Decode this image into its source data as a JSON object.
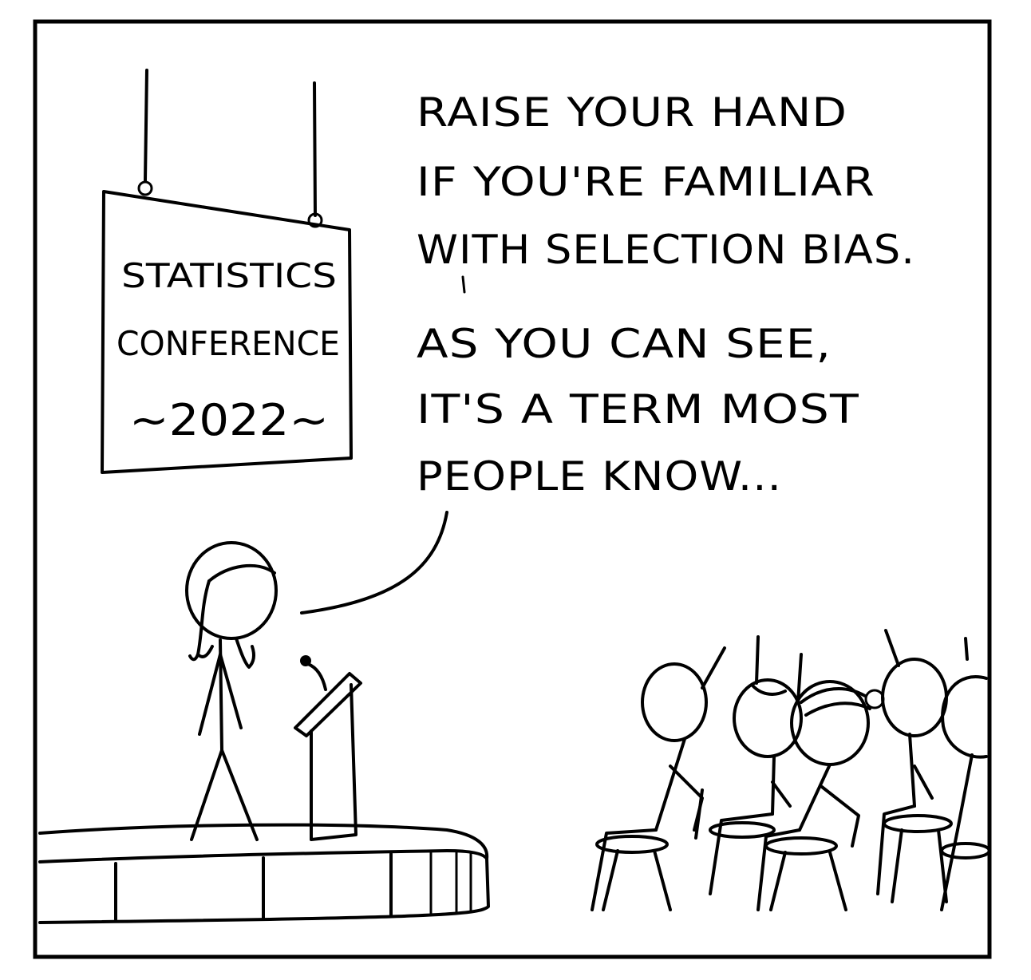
{
  "sign": {
    "line1": "STATISTICS",
    "line2": "CONFERENCE",
    "line3": "~2022~"
  },
  "speech": {
    "part1": [
      "RAISE YOUR HAND",
      "IF YOU'RE FAMILIAR",
      "WITH SELECTION BIAS."
    ],
    "part2": [
      "AS YOU CAN SEE,",
      "IT'S A TERM MOST",
      "PEOPLE KNOW..."
    ]
  }
}
